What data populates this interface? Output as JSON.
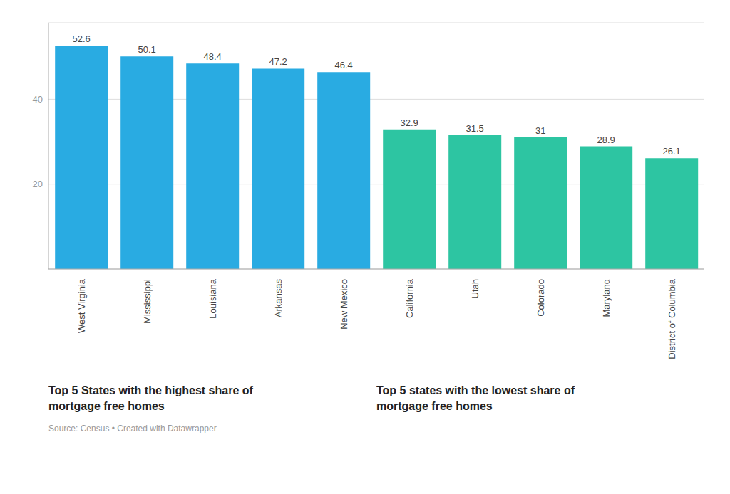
{
  "chart_data": {
    "type": "bar",
    "categories": [
      "West Virginia",
      "Mississippi",
      "Louisiana",
      "Arkansas",
      "New Mexico",
      "California",
      "Utah",
      "Colorado",
      "Maryland",
      "District of Columbia"
    ],
    "values": [
      52.6,
      50.1,
      48.4,
      47.2,
      46.4,
      32.9,
      31.5,
      31.0,
      28.9,
      26.1
    ],
    "colors": [
      "#29ABE2",
      "#29ABE2",
      "#29ABE2",
      "#29ABE2",
      "#29ABE2",
      "#2DC5A2",
      "#2DC5A2",
      "#2DC5A2",
      "#2DC5A2",
      "#2DC5A2"
    ],
    "ylim": [
      0,
      58
    ],
    "yticks": [
      20,
      40
    ],
    "grid": true,
    "data_labels": true,
    "annotations": [
      "Top 5 States with the highest share of\nmortgage free homes",
      "Top 5 states with the lowest share of\nmortgage free homes",
      "Source: Census • Created with Datawrapper"
    ]
  }
}
